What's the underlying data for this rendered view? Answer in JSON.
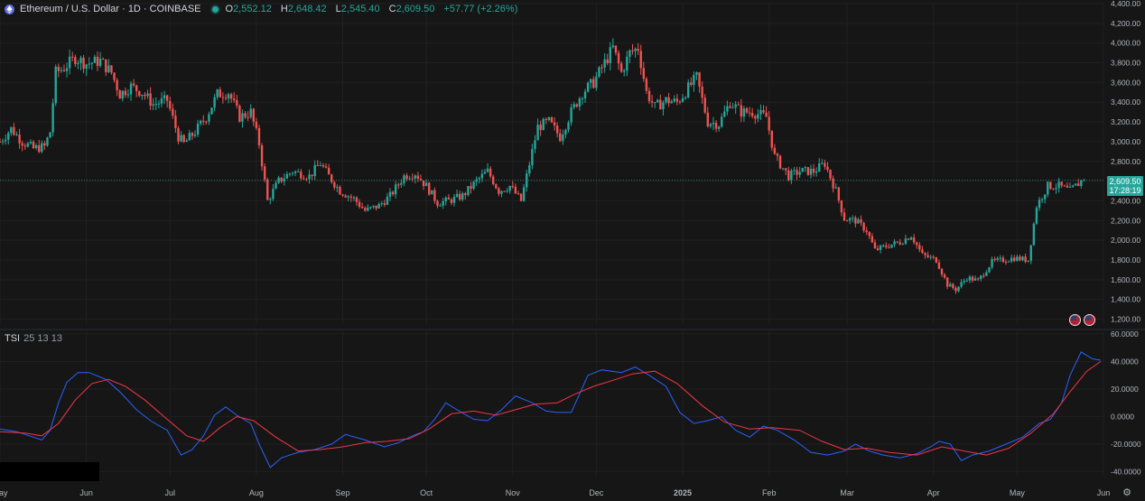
{
  "header": {
    "title": "Ethereum / U.S. Dollar · 1D · COINBASE",
    "ohlc": [
      {
        "key": "O",
        "value": "2,552.12"
      },
      {
        "key": "H",
        "value": "2,648.42"
      },
      {
        "key": "L",
        "value": "2,545.40"
      },
      {
        "key": "C",
        "value": "2,609.50"
      }
    ],
    "change": "+57.77 (+2.26%)"
  },
  "price_tag": {
    "price": "2,609.50",
    "countdown": "17:28:19"
  },
  "tsi_legend": {
    "name": "TSI",
    "params": "25 13 13"
  },
  "colors": {
    "background": "#161616",
    "up": "#26a69a",
    "down": "#ef5350",
    "tsi": "#2962ff",
    "signal": "#f23645",
    "axis_text": "#b2b5be"
  },
  "icons": {
    "symbol": "ethereum-icon",
    "flag": "us-flag-icon",
    "settings": "gear-icon"
  },
  "chart_data": [
    {
      "type": "candlestick",
      "title": "Ethereum / U.S. Dollar · 1D · COINBASE",
      "ylim": [
        1150,
        4400
      ],
      "yticks": [
        1200,
        1400,
        1600,
        1800,
        2000,
        2200,
        2400,
        2600,
        2800,
        3000,
        3200,
        3400,
        3600,
        3800,
        4000,
        4200,
        4400
      ],
      "ytick_labels": [
        "1,200.00",
        "1,400.00",
        "1,600.00",
        "1,800.00",
        "2,000.00",
        "2,200.00",
        "2,400.00",
        "2,600.00",
        "2,800.00",
        "3,000.00",
        "3,200.00",
        "3,400.00",
        "3,600.00",
        "3,800.00",
        "4,000.00",
        "4,200.00",
        "4,400.00"
      ],
      "x_start": "2024-05-01",
      "x_end": "2025-06-01",
      "xticks": [
        {
          "date": "2024-05-01",
          "label": "May"
        },
        {
          "date": "2024-06-01",
          "label": "Jun"
        },
        {
          "date": "2024-07-01",
          "label": "Jul"
        },
        {
          "date": "2024-08-01",
          "label": "Aug"
        },
        {
          "date": "2024-09-01",
          "label": "Sep"
        },
        {
          "date": "2024-10-01",
          "label": "Oct"
        },
        {
          "date": "2024-11-01",
          "label": "Nov"
        },
        {
          "date": "2024-12-01",
          "label": "Dec"
        },
        {
          "date": "2025-01-01",
          "label": "2025"
        },
        {
          "date": "2025-02-01",
          "label": "Feb"
        },
        {
          "date": "2025-03-01",
          "label": "Mar"
        },
        {
          "date": "2025-04-01",
          "label": "Apr"
        },
        {
          "date": "2025-05-01",
          "label": "May"
        },
        {
          "date": "2025-06-01",
          "label": "Jun"
        }
      ],
      "close_path": [
        [
          "2024-05-01",
          3000
        ],
        [
          "2024-05-05",
          3130
        ],
        [
          "2024-05-09",
          3000
        ],
        [
          "2024-05-13",
          2930
        ],
        [
          "2024-05-17",
          2950
        ],
        [
          "2024-05-19",
          3100
        ],
        [
          "2024-05-21",
          3700
        ],
        [
          "2024-05-24",
          3750
        ],
        [
          "2024-05-28",
          3850
        ],
        [
          "2024-06-01",
          3790
        ],
        [
          "2024-06-06",
          3820
        ],
        [
          "2024-06-10",
          3700
        ],
        [
          "2024-06-13",
          3480
        ],
        [
          "2024-06-17",
          3560
        ],
        [
          "2024-06-21",
          3500
        ],
        [
          "2024-06-25",
          3380
        ],
        [
          "2024-06-30",
          3420
        ],
        [
          "2024-07-04",
          3050
        ],
        [
          "2024-07-06",
          2980
        ],
        [
          "2024-07-10",
          3100
        ],
        [
          "2024-07-14",
          3250
        ],
        [
          "2024-07-18",
          3480
        ],
        [
          "2024-07-22",
          3500
        ],
        [
          "2024-07-26",
          3250
        ],
        [
          "2024-07-30",
          3300
        ],
        [
          "2024-08-02",
          2980
        ],
        [
          "2024-08-05",
          2400
        ],
        [
          "2024-08-09",
          2600
        ],
        [
          "2024-08-14",
          2700
        ],
        [
          "2024-08-20",
          2650
        ],
        [
          "2024-08-24",
          2780
        ],
        [
          "2024-08-27",
          2650
        ],
        [
          "2024-08-31",
          2500
        ],
        [
          "2024-09-05",
          2420
        ],
        [
          "2024-09-09",
          2300
        ],
        [
          "2024-09-14",
          2350
        ],
        [
          "2024-09-18",
          2450
        ],
        [
          "2024-09-23",
          2650
        ],
        [
          "2024-09-27",
          2680
        ],
        [
          "2024-10-01",
          2550
        ],
        [
          "2024-10-05",
          2380
        ],
        [
          "2024-10-09",
          2400
        ],
        [
          "2024-10-14",
          2450
        ],
        [
          "2024-10-19",
          2600
        ],
        [
          "2024-10-23",
          2700
        ],
        [
          "2024-10-27",
          2500
        ],
        [
          "2024-10-31",
          2550
        ],
        [
          "2024-11-04",
          2400
        ],
        [
          "2024-11-06",
          2650
        ],
        [
          "2024-11-10",
          3150
        ],
        [
          "2024-11-14",
          3200
        ],
        [
          "2024-11-18",
          3050
        ],
        [
          "2024-11-22",
          3300
        ],
        [
          "2024-11-26",
          3500
        ],
        [
          "2024-11-30",
          3600
        ],
        [
          "2024-12-04",
          3800
        ],
        [
          "2024-12-07",
          3950
        ],
        [
          "2024-12-10",
          3700
        ],
        [
          "2024-12-13",
          3900
        ],
        [
          "2024-12-16",
          3950
        ],
        [
          "2024-12-19",
          3500
        ],
        [
          "2024-12-22",
          3350
        ],
        [
          "2024-12-26",
          3420
        ],
        [
          "2024-12-30",
          3400
        ],
        [
          "2025-01-06",
          3650
        ],
        [
          "2025-01-10",
          3200
        ],
        [
          "2025-01-14",
          3180
        ],
        [
          "2025-01-18",
          3400
        ],
        [
          "2025-01-22",
          3300
        ],
        [
          "2025-01-26",
          3300
        ],
        [
          "2025-01-31",
          3250
        ],
        [
          "2025-02-03",
          2850
        ],
        [
          "2025-02-08",
          2650
        ],
        [
          "2025-02-12",
          2700
        ],
        [
          "2025-02-17",
          2700
        ],
        [
          "2025-02-21",
          2780
        ],
        [
          "2025-02-25",
          2500
        ],
        [
          "2025-02-28",
          2220
        ],
        [
          "2025-03-04",
          2200
        ],
        [
          "2025-03-08",
          2100
        ],
        [
          "2025-03-11",
          1900
        ],
        [
          "2025-03-16",
          1950
        ],
        [
          "2025-03-20",
          1980
        ],
        [
          "2025-03-24",
          2050
        ],
        [
          "2025-03-28",
          1850
        ],
        [
          "2025-04-02",
          1800
        ],
        [
          "2025-04-06",
          1550
        ],
        [
          "2025-04-09",
          1500
        ],
        [
          "2025-04-13",
          1620
        ],
        [
          "2025-04-17",
          1590
        ],
        [
          "2025-04-22",
          1780
        ],
        [
          "2025-04-26",
          1800
        ],
        [
          "2025-04-30",
          1820
        ],
        [
          "2025-05-05",
          1800
        ],
        [
          "2025-05-08",
          2350
        ],
        [
          "2025-05-12",
          2550
        ],
        [
          "2025-05-16",
          2550
        ],
        [
          "2025-05-20",
          2500
        ],
        [
          "2025-05-24",
          2600
        ]
      ],
      "last_close": 2609.5
    },
    {
      "type": "line",
      "title": "TSI 25 13 13",
      "ylim": [
        -43,
        62
      ],
      "yticks": [
        -40,
        -20,
        0,
        20,
        40,
        60
      ],
      "ytick_labels": [
        "-40.0000",
        "-20.0000",
        "0.0000",
        "20.0000",
        "40.0000",
        "60.0000"
      ],
      "series": [
        {
          "name": "TSI",
          "values": [
            [
              "2024-05-01",
              -9
            ],
            [
              "2024-05-07",
              -11
            ],
            [
              "2024-05-13",
              -15
            ],
            [
              "2024-05-16",
              -17
            ],
            [
              "2024-05-19",
              -10
            ],
            [
              "2024-05-22",
              10
            ],
            [
              "2024-05-25",
              25
            ],
            [
              "2024-05-29",
              32
            ],
            [
              "2024-06-02",
              32
            ],
            [
              "2024-06-08",
              27
            ],
            [
              "2024-06-13",
              18
            ],
            [
              "2024-06-19",
              5
            ],
            [
              "2024-06-24",
              -3
            ],
            [
              "2024-06-30",
              -10
            ],
            [
              "2024-07-05",
              -28
            ],
            [
              "2024-07-09",
              -24
            ],
            [
              "2024-07-13",
              -14
            ],
            [
              "2024-07-17",
              1
            ],
            [
              "2024-07-21",
              7
            ],
            [
              "2024-07-25",
              1
            ],
            [
              "2024-07-30",
              -5
            ],
            [
              "2024-08-02",
              -20
            ],
            [
              "2024-08-06",
              -37
            ],
            [
              "2024-08-10",
              -30
            ],
            [
              "2024-08-16",
              -26
            ],
            [
              "2024-08-22",
              -24
            ],
            [
              "2024-08-28",
              -20
            ],
            [
              "2024-09-02",
              -13
            ],
            [
              "2024-09-09",
              -17
            ],
            [
              "2024-09-16",
              -22
            ],
            [
              "2024-09-21",
              -19
            ],
            [
              "2024-09-26",
              -14
            ],
            [
              "2024-09-30",
              -11
            ],
            [
              "2024-10-04",
              -2
            ],
            [
              "2024-10-08",
              10
            ],
            [
              "2024-10-12",
              5
            ],
            [
              "2024-10-18",
              -2
            ],
            [
              "2024-10-23",
              -3
            ],
            [
              "2024-10-28",
              5
            ],
            [
              "2024-11-02",
              15
            ],
            [
              "2024-11-08",
              10
            ],
            [
              "2024-11-13",
              4
            ],
            [
              "2024-11-17",
              3
            ],
            [
              "2024-11-22",
              3
            ],
            [
              "2024-11-28",
              30
            ],
            [
              "2024-12-03",
              34
            ],
            [
              "2024-12-10",
              32
            ],
            [
              "2024-12-15",
              36
            ],
            [
              "2024-12-20",
              30
            ],
            [
              "2024-12-26",
              22
            ],
            [
              "2024-12-31",
              3
            ],
            [
              "2025-01-05",
              -5
            ],
            [
              "2025-01-10",
              -3
            ],
            [
              "2025-01-15",
              0
            ],
            [
              "2025-01-20",
              -10
            ],
            [
              "2025-01-25",
              -15
            ],
            [
              "2025-01-30",
              -7
            ],
            [
              "2025-02-04",
              -10
            ],
            [
              "2025-02-10",
              -17
            ],
            [
              "2025-02-16",
              -26
            ],
            [
              "2025-02-22",
              -28
            ],
            [
              "2025-02-28",
              -25
            ],
            [
              "2025-03-04",
              -20
            ],
            [
              "2025-03-09",
              -25
            ],
            [
              "2025-03-14",
              -28
            ],
            [
              "2025-03-20",
              -30
            ],
            [
              "2025-03-26",
              -27
            ],
            [
              "2025-03-31",
              -22
            ],
            [
              "2025-04-03",
              -18
            ],
            [
              "2025-04-07",
              -20
            ],
            [
              "2025-04-11",
              -32
            ],
            [
              "2025-04-15",
              -28
            ],
            [
              "2025-04-21",
              -25
            ],
            [
              "2025-04-27",
              -20
            ],
            [
              "2025-05-03",
              -15
            ],
            [
              "2025-05-09",
              -5
            ],
            [
              "2025-05-13",
              -2
            ],
            [
              "2025-05-17",
              10
            ],
            [
              "2025-05-20",
              30
            ],
            [
              "2025-05-24",
              47
            ],
            [
              "2025-05-28",
              42
            ],
            [
              "2025-05-31",
              41
            ]
          ]
        },
        {
          "name": "Signal",
          "values": [
            [
              "2024-05-01",
              -11
            ],
            [
              "2024-05-10",
              -12
            ],
            [
              "2024-05-16",
              -14
            ],
            [
              "2024-05-22",
              -5
            ],
            [
              "2024-05-28",
              12
            ],
            [
              "2024-06-03",
              24
            ],
            [
              "2024-06-09",
              27
            ],
            [
              "2024-06-15",
              22
            ],
            [
              "2024-06-22",
              12
            ],
            [
              "2024-06-30",
              -2
            ],
            [
              "2024-07-07",
              -14
            ],
            [
              "2024-07-13",
              -18
            ],
            [
              "2024-07-19",
              -8
            ],
            [
              "2024-07-25",
              0
            ],
            [
              "2024-07-31",
              -3
            ],
            [
              "2024-08-08",
              -15
            ],
            [
              "2024-08-16",
              -25
            ],
            [
              "2024-08-24",
              -24
            ],
            [
              "2024-09-01",
              -22
            ],
            [
              "2024-09-09",
              -19
            ],
            [
              "2024-09-17",
              -18
            ],
            [
              "2024-09-25",
              -16
            ],
            [
              "2024-10-02",
              -9
            ],
            [
              "2024-10-10",
              2
            ],
            [
              "2024-10-18",
              4
            ],
            [
              "2024-10-26",
              1
            ],
            [
              "2024-11-02",
              5
            ],
            [
              "2024-11-09",
              9
            ],
            [
              "2024-11-17",
              10
            ],
            [
              "2024-11-23",
              16
            ],
            [
              "2024-11-30",
              22
            ],
            [
              "2024-12-08",
              27
            ],
            [
              "2024-12-14",
              31
            ],
            [
              "2024-12-22",
              33
            ],
            [
              "2024-12-30",
              24
            ],
            [
              "2025-01-08",
              8
            ],
            [
              "2025-01-16",
              -4
            ],
            [
              "2025-01-25",
              -9
            ],
            [
              "2025-02-02",
              -8
            ],
            [
              "2025-02-12",
              -10
            ],
            [
              "2025-02-20",
              -18
            ],
            [
              "2025-02-28",
              -24
            ],
            [
              "2025-03-08",
              -23
            ],
            [
              "2025-03-16",
              -26
            ],
            [
              "2025-03-26",
              -28
            ],
            [
              "2025-04-04",
              -22
            ],
            [
              "2025-04-12",
              -25
            ],
            [
              "2025-04-20",
              -28
            ],
            [
              "2025-04-28",
              -23
            ],
            [
              "2025-05-06",
              -12
            ],
            [
              "2025-05-14",
              2
            ],
            [
              "2025-05-20",
              18
            ],
            [
              "2025-05-26",
              33
            ],
            [
              "2025-05-31",
              40
            ]
          ]
        }
      ]
    }
  ]
}
